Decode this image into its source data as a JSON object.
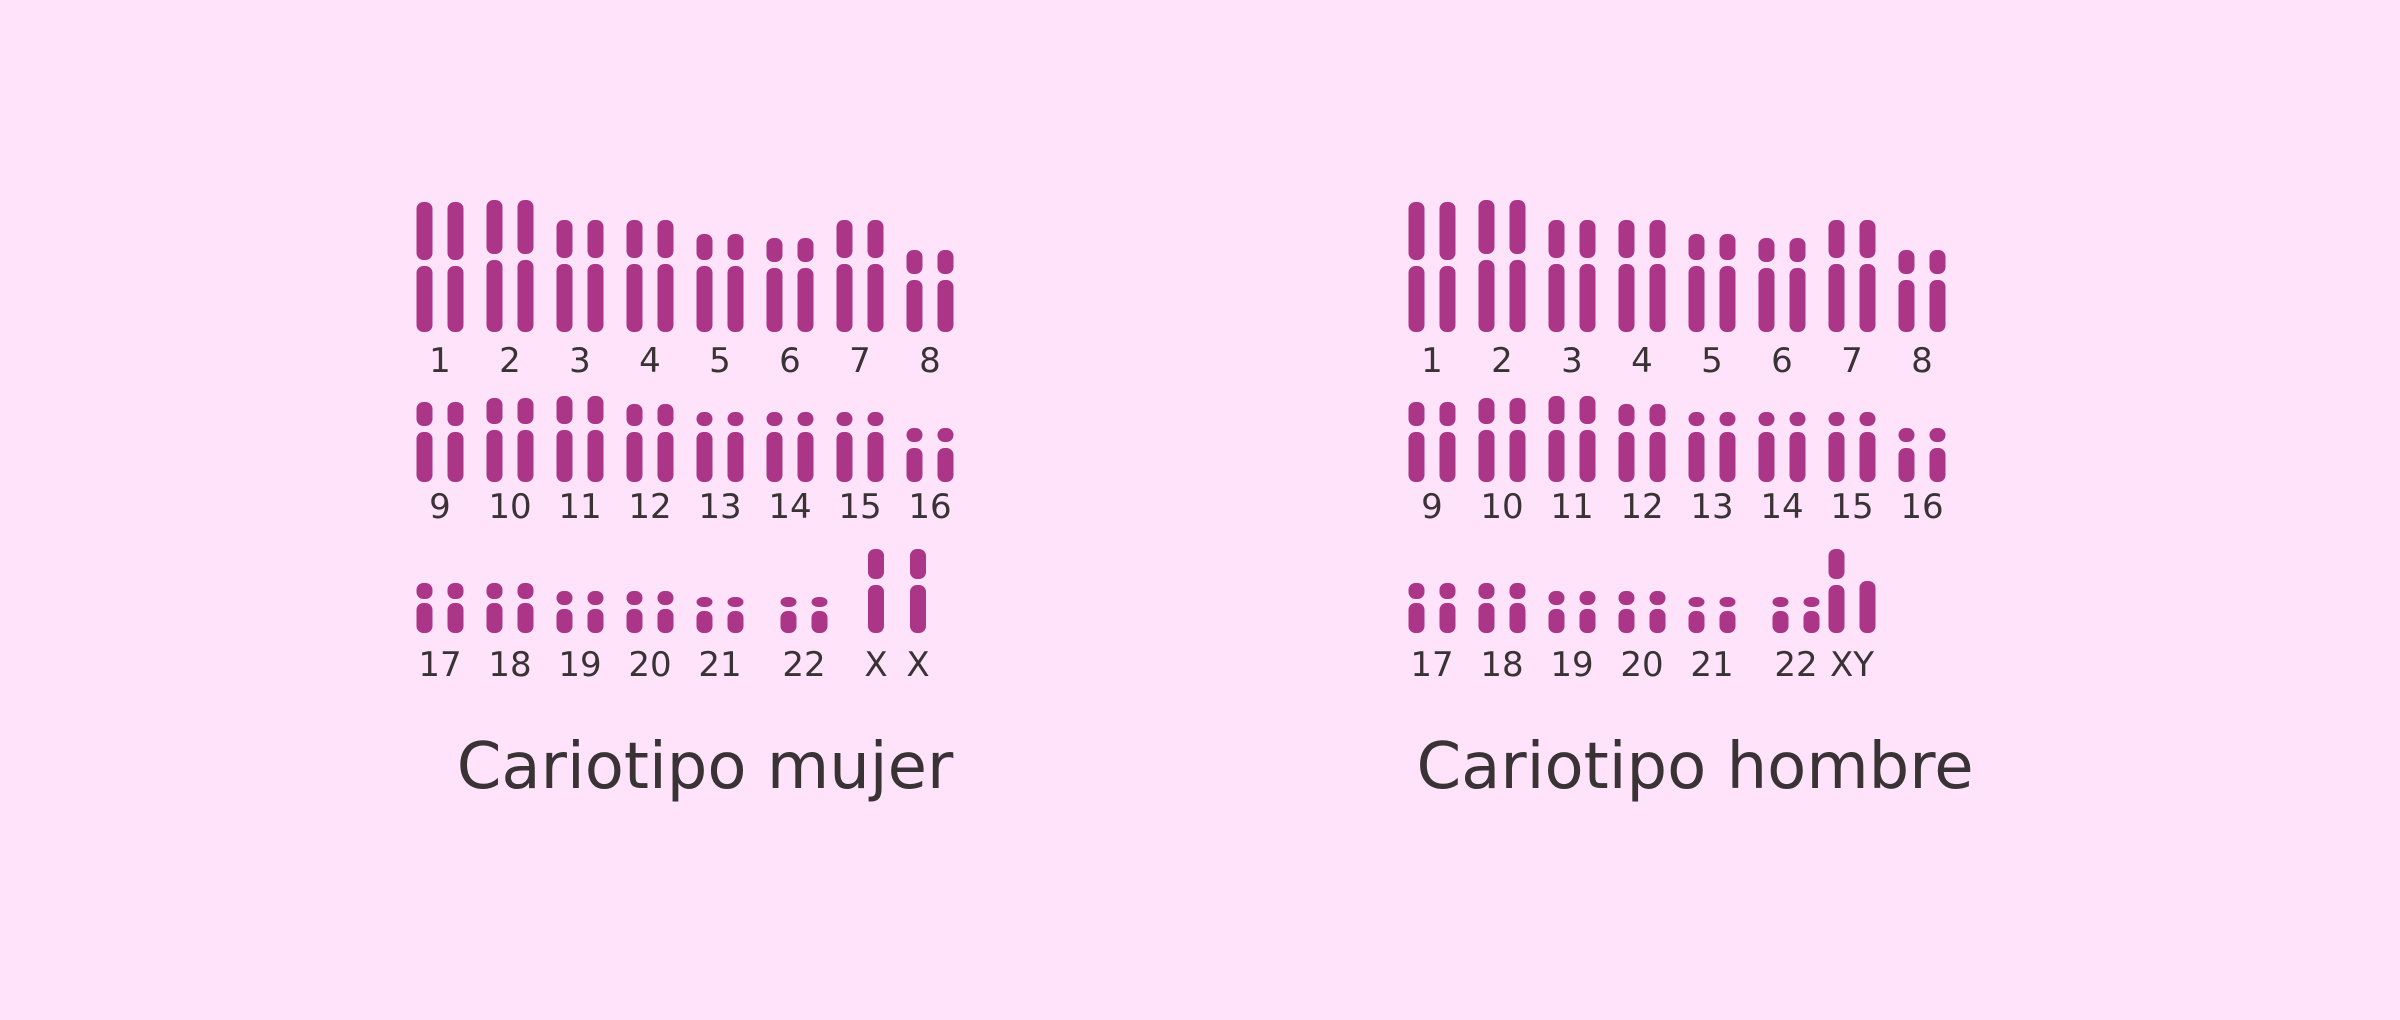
{
  "colors": {
    "background": "#ffe3fa",
    "chromosome": "#ab3587",
    "text": "#3a3336"
  },
  "panels": [
    {
      "id": "female",
      "title": "Cariotipo mujer",
      "pairs": [
        {
          "label": "1",
          "chromosomes": [
            "long",
            "long"
          ]
        },
        {
          "label": "2",
          "chromosomes": [
            "long",
            "long"
          ]
        },
        {
          "label": "3",
          "chromosomes": [
            "long",
            "long"
          ]
        },
        {
          "label": "4",
          "chromosomes": [
            "long",
            "long"
          ]
        },
        {
          "label": "5",
          "chromosomes": [
            "long",
            "long"
          ]
        },
        {
          "label": "6",
          "chromosomes": [
            "long",
            "long"
          ]
        },
        {
          "label": "7",
          "chromosomes": [
            "long",
            "long"
          ]
        },
        {
          "label": "8",
          "chromosomes": [
            "long",
            "long"
          ]
        },
        {
          "label": "9",
          "chromosomes": [
            "medium",
            "medium"
          ]
        },
        {
          "label": "10",
          "chromosomes": [
            "medium",
            "medium"
          ]
        },
        {
          "label": "11",
          "chromosomes": [
            "medium",
            "medium"
          ]
        },
        {
          "label": "12",
          "chromosomes": [
            "medium",
            "medium"
          ]
        },
        {
          "label": "13",
          "chromosomes": [
            "medium",
            "medium"
          ]
        },
        {
          "label": "14",
          "chromosomes": [
            "medium",
            "medium"
          ]
        },
        {
          "label": "15",
          "chromosomes": [
            "medium",
            "medium"
          ]
        },
        {
          "label": "16",
          "chromosomes": [
            "medium",
            "medium"
          ]
        },
        {
          "label": "17",
          "chromosomes": [
            "small",
            "small"
          ]
        },
        {
          "label": "18",
          "chromosomes": [
            "small",
            "small"
          ]
        },
        {
          "label": "19",
          "chromosomes": [
            "small",
            "small"
          ]
        },
        {
          "label": "20",
          "chromosomes": [
            "small",
            "small"
          ]
        },
        {
          "label": "21",
          "chromosomes": [
            "small",
            "small"
          ]
        },
        {
          "label": "22",
          "chromosomes": [
            "small",
            "small"
          ]
        },
        {
          "label": "X",
          "chromosomes": [
            "X"
          ]
        },
        {
          "label": "X",
          "chromosomes": [
            "X"
          ]
        }
      ]
    },
    {
      "id": "male",
      "title": "Cariotipo hombre",
      "pairs": [
        {
          "label": "1",
          "chromosomes": [
            "long",
            "long"
          ]
        },
        {
          "label": "2",
          "chromosomes": [
            "long",
            "long"
          ]
        },
        {
          "label": "3",
          "chromosomes": [
            "long",
            "long"
          ]
        },
        {
          "label": "4",
          "chromosomes": [
            "long",
            "long"
          ]
        },
        {
          "label": "5",
          "chromosomes": [
            "long",
            "long"
          ]
        },
        {
          "label": "6",
          "chromosomes": [
            "long",
            "long"
          ]
        },
        {
          "label": "7",
          "chromosomes": [
            "long",
            "long"
          ]
        },
        {
          "label": "8",
          "chromosomes": [
            "long",
            "long"
          ]
        },
        {
          "label": "9",
          "chromosomes": [
            "medium",
            "medium"
          ]
        },
        {
          "label": "10",
          "chromosomes": [
            "medium",
            "medium"
          ]
        },
        {
          "label": "11",
          "chromosomes": [
            "medium",
            "medium"
          ]
        },
        {
          "label": "12",
          "chromosomes": [
            "medium",
            "medium"
          ]
        },
        {
          "label": "13",
          "chromosomes": [
            "medium",
            "medium"
          ]
        },
        {
          "label": "14",
          "chromosomes": [
            "medium",
            "medium"
          ]
        },
        {
          "label": "15",
          "chromosomes": [
            "medium",
            "medium"
          ]
        },
        {
          "label": "16",
          "chromosomes": [
            "medium",
            "medium"
          ]
        },
        {
          "label": "17",
          "chromosomes": [
            "small",
            "small"
          ]
        },
        {
          "label": "18",
          "chromosomes": [
            "small",
            "small"
          ]
        },
        {
          "label": "19",
          "chromosomes": [
            "small",
            "small"
          ]
        },
        {
          "label": "20",
          "chromosomes": [
            "small",
            "small"
          ]
        },
        {
          "label": "21",
          "chromosomes": [
            "small",
            "small"
          ]
        },
        {
          "label": "22",
          "chromosomes": [
            "small",
            "small"
          ]
        },
        {
          "label": "XY",
          "chromosomes": [
            "X",
            "Y"
          ]
        }
      ]
    }
  ]
}
